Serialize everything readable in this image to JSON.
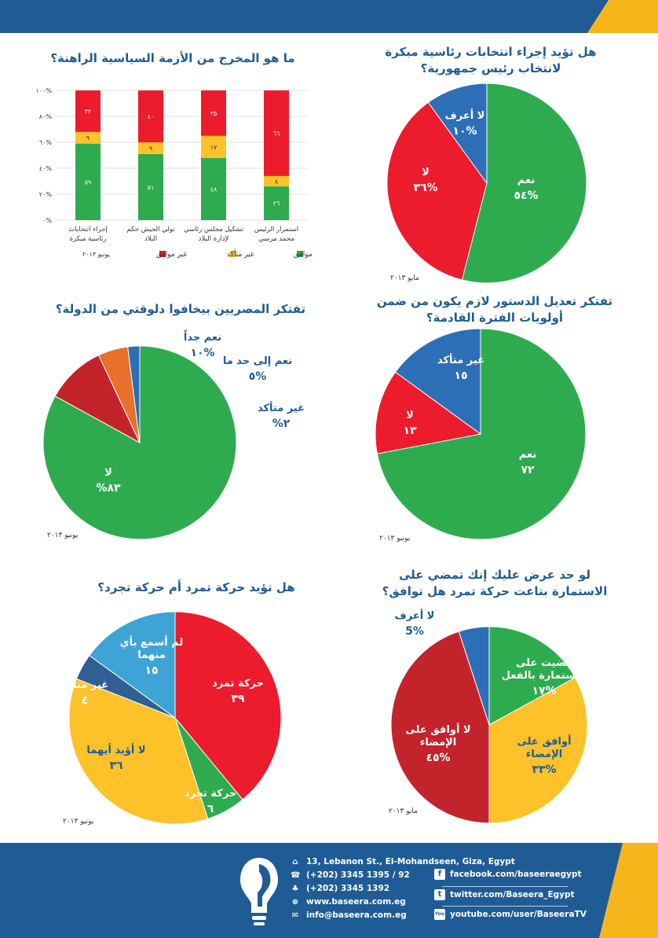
{
  "chart_data": [
    {
      "type": "bar",
      "title": "ما هو المخرج من الأزمة السياسية الراهنة؟",
      "date": "يونيو ٢٠١٣",
      "categories": [
        "إجراء انتخابات رئاسية مبكرة",
        "تولي الجيش حكم البلاد",
        "تشكيل مجلس رئاسي لإدارة البلاد",
        "استمرار الرئيس محمد مرسي"
      ],
      "category_lines": [
        [
          "إجراء انتخابات",
          "رئاسية مبكرة"
        ],
        [
          "تولي الجيش حكم",
          "البلاد"
        ],
        [
          "تشكيل مجلس رئاسي",
          "لإدارة البلاد"
        ],
        [
          "استمرار الرئيس",
          "محمد مرسي"
        ]
      ],
      "series": [
        {
          "name": "موافق",
          "color": "#2eab4f",
          "values": [
            59,
            51,
            48,
            26
          ],
          "labels": [
            "٥٩",
            "٥١",
            "٤٨",
            "٢٦"
          ]
        },
        {
          "name": "غير متأكد",
          "color": "#fdc12a",
          "values": [
            9,
            9,
            17,
            8
          ],
          "labels": [
            "٩",
            "٩",
            "١٧",
            "٨"
          ]
        },
        {
          "name": "غير موافق",
          "color": "#ec1c2d",
          "values": [
            32,
            40,
            35,
            66
          ],
          "labels": [
            "٣٢",
            "٤٠",
            "٣٥",
            "٦٦"
          ]
        }
      ],
      "yticks": [
        "٠%",
        "٢٠%",
        "٤٠%",
        "٦٠%",
        "٨٠%",
        "١٠٠%"
      ],
      "ylim": [
        0,
        100
      ],
      "stacked": true,
      "legend_position": "bottom"
    },
    {
      "type": "pie",
      "title": "هل تؤيد إجراء انتخابات رئاسية مبكرة لانتخاب رئيس جمهورية؟",
      "title_lines": [
        "هل تؤيد إجراء انتخابات رئاسية مبكرة",
        "لانتخاب رئيس جمهورية؟"
      ],
      "date": "مايو ٢٠١٣",
      "slices": [
        {
          "label": "نعم",
          "value_label": "٥٤%",
          "value": 54,
          "color": "#2eab4f"
        },
        {
          "label": "لا",
          "value_label": "٣٦%",
          "value": 36,
          "color": "#ec1c2d"
        },
        {
          "label": "لا أعرف",
          "value_label": "١٠%",
          "value": 10,
          "color": "#2d6fb7"
        }
      ]
    },
    {
      "type": "pie",
      "title": "تفتكر المصريين بيخافوا دلوقتي من الدولة؟",
      "date": "يونيو ٢٠١٣",
      "slices": [
        {
          "label": "لا",
          "value_label": "%٨٣",
          "value": 83,
          "color": "#2eab4f"
        },
        {
          "label": "نعم جداً",
          "value_label": "١٠%",
          "value": 10,
          "color": "#c3242c"
        },
        {
          "label": "نعم إلى حد ما",
          "value_label": "٥%",
          "value": 5,
          "color": "#e8702a"
        },
        {
          "label": "غير متأكد",
          "value_label": "%٢",
          "value": 2,
          "color": "#2d6fb7"
        }
      ]
    },
    {
      "type": "pie",
      "title": "تفتكر تعديل الدستور لازم يكون من ضمن أولويات الفترة القادمة؟",
      "title_lines": [
        "تفتكر تعديل الدستور لازم يكون من ضمن",
        "أولويات الفترة القادمة؟"
      ],
      "date": "يونيو ٢٠١٣",
      "slices": [
        {
          "label": "نعم",
          "value_label": "٧٢",
          "value": 72,
          "color": "#2eab4f"
        },
        {
          "label": "لا",
          "value_label": "١٣",
          "value": 13,
          "color": "#ec1c2d"
        },
        {
          "label": "غير متأكد",
          "value_label": "١٥",
          "value": 15,
          "color": "#2d6fb7"
        }
      ]
    },
    {
      "type": "pie",
      "title": "هل تؤيد حركة تمرد أم حركة تجرد؟",
      "date": "يونيو ٢٠١٣",
      "slices": [
        {
          "label": "حركة تمرد",
          "value_label": "٣٩",
          "value": 39,
          "color": "#ec1c2d"
        },
        {
          "label": "حركة تجرد",
          "value_label": "٦",
          "value": 6,
          "color": "#2eab4f"
        },
        {
          "label": "لا أؤيد أيهما",
          "value_label": "٣٦",
          "value": 36,
          "color": "#fdc12a"
        },
        {
          "label": "غير متأكد",
          "value_label": "٤",
          "value": 4,
          "color": "#2f5f93"
        },
        {
          "label": "لم أسمع بأي منهما",
          "value_label": "١٥",
          "value": 15,
          "color": "#3ea4d6",
          "label_lines": [
            "لم أسمع بأي",
            "منهما"
          ]
        }
      ]
    },
    {
      "type": "pie",
      "title": "لو حد عرض عليك إنك تمضي على الاستمارة بتاعت حركة تمرد هل توافق؟",
      "title_lines": [
        "لو حد عرض عليك إنك تمضي على",
        "الاستمارة بتاعت حركة تمرد هل توافق؟"
      ],
      "date": "مايو ٢٠١٣",
      "slices": [
        {
          "label": "مضيت على الاستمارة بالفعل",
          "value_label": "١٧%",
          "value": 17,
          "color": "#2eab4f",
          "label_lines": [
            "مضيت على",
            "الاستمارة بالفعل"
          ]
        },
        {
          "label": "أوافق على الإمضاء",
          "value_label": "٣٣%",
          "value": 33,
          "color": "#fdc12a",
          "label_lines": [
            "أوافق على",
            "الإمضاء"
          ]
        },
        {
          "label": "لا أوافق على الإمضاء",
          "value_label": "٤٥%",
          "value": 45,
          "color": "#c3242c",
          "label_lines": [
            "لا أوافق على",
            "الإمضاء"
          ]
        },
        {
          "label": "لا أعرف",
          "value_label": "5%",
          "value": 5,
          "color": "#2d6fb7"
        }
      ]
    }
  ],
  "footer": {
    "address": "13, Lebanon St., El-Mohandseen, Giza, Egypt",
    "phone": "(+202) 3345 1395 / 92",
    "fax": "(+202) 3345 1392",
    "website": "www.baseera.com.eg",
    "email": "info@baseera.com.eg",
    "facebook": "facebook.com/baseeraegypt",
    "twitter": "twitter.com/Baseera_Egypt",
    "youtube": "youtube.com/user/BaseeraTV",
    "youtube_icon_text": "You",
    "twitter_icon_text": "t",
    "facebook_icon_text": "f"
  },
  "colors": {
    "brand_blue": "#1f5c96",
    "brand_yellow": "#f5b61c"
  }
}
